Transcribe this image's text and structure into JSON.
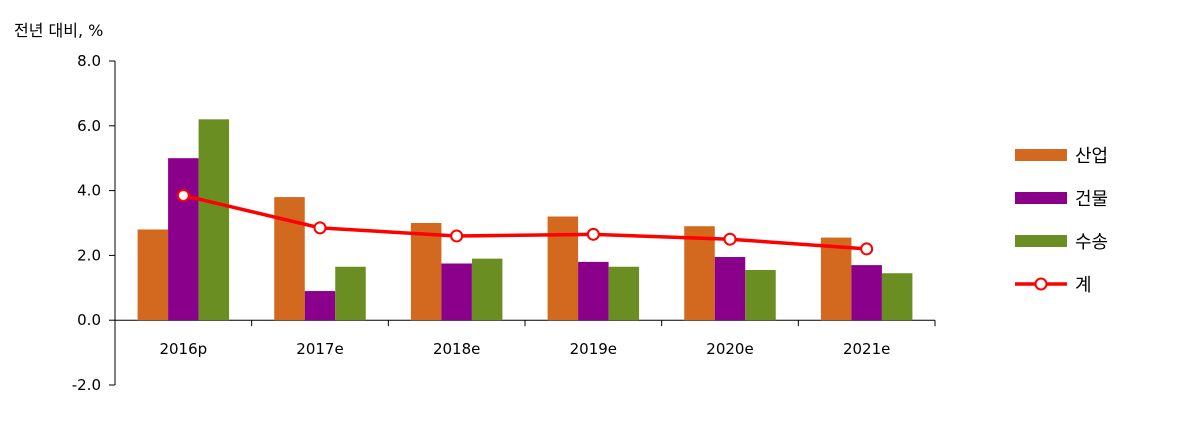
{
  "chart_data": {
    "type": "bar",
    "unit_label": "전년 대비, %",
    "categories": [
      "2016p",
      "2017e",
      "2018e",
      "2019e",
      "2020e",
      "2021e"
    ],
    "ylim": [
      -2.0,
      8.0
    ],
    "yticks": [
      "8.0",
      "6.0",
      "4.0",
      "2.0",
      "0.0",
      "-2.0"
    ],
    "ytick_values": [
      8,
      6,
      4,
      2,
      0,
      -2
    ],
    "legend_position": "right",
    "series": [
      {
        "name": "산업",
        "type": "bar",
        "color": "#D2691E",
        "values": [
          2.8,
          3.8,
          3.0,
          3.2,
          2.9,
          2.55
        ]
      },
      {
        "name": "건물",
        "type": "bar",
        "color": "#8B008B",
        "values": [
          5.0,
          0.9,
          1.75,
          1.8,
          1.95,
          1.7
        ]
      },
      {
        "name": "수송",
        "type": "bar",
        "color": "#6B8E23",
        "values": [
          6.2,
          1.65,
          1.9,
          1.65,
          1.55,
          1.45
        ]
      },
      {
        "name": "계",
        "type": "line",
        "color": "#FF0000",
        "values": [
          3.85,
          2.85,
          2.6,
          2.65,
          2.5,
          2.2
        ]
      }
    ]
  }
}
